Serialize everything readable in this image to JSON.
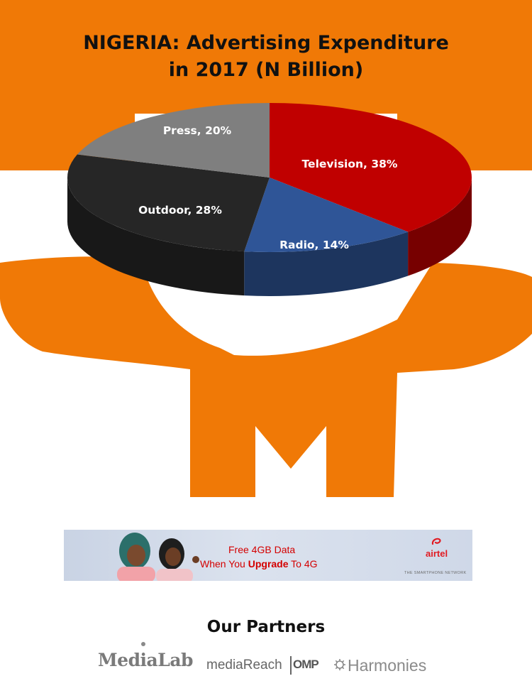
{
  "colors": {
    "brand_orange": "#f07906",
    "television": "#c00000",
    "radio": "#2f5597",
    "outdoor": "#262626",
    "press": "#7f7f7f"
  },
  "chart_data": {
    "type": "pie",
    "title_line1": "NIGERIA: Advertising Expenditure",
    "title_line2": "in 2017 (N Billion)",
    "slices": [
      {
        "name": "Television",
        "value": 38,
        "label": "Television, 38%"
      },
      {
        "name": "Radio",
        "value": 14,
        "label": "Radio, 14%"
      },
      {
        "name": "Outdoor",
        "value": 28,
        "label": "Outdoor, 28%"
      },
      {
        "name": "Press",
        "value": 20,
        "label": "Press, 20%"
      }
    ],
    "legend": "none",
    "style": "3d"
  },
  "banner": {
    "line1": "Free 4GB Data",
    "line2_prefix": "When You ",
    "line2_bold": "Upgrade",
    "line2_suffix": " To 4G",
    "brand": "airtel",
    "tagline": "THE SMARTPHONE NETWORK"
  },
  "partners": {
    "heading": "Our Partners",
    "logos": [
      "MediaLab",
      "mediaReach",
      "OMP",
      "Harmonies"
    ]
  }
}
